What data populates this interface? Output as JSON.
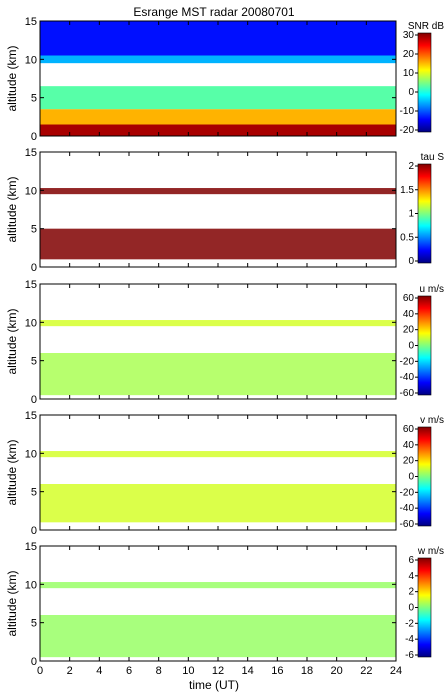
{
  "figure": {
    "title": "Esrange MST radar 20080701",
    "xlabel": "time (UT)",
    "x_ticks": [
      "0",
      "2",
      "4",
      "6",
      "8",
      "10",
      "12",
      "14",
      "16",
      "18",
      "20",
      "22",
      "24"
    ],
    "y_ticks": [
      "0",
      "5",
      "10",
      "15"
    ]
  },
  "chart_data": [
    {
      "type": "heatmap",
      "ylabel": "altitude (km)",
      "xlim": [
        0,
        24
      ],
      "ylim": [
        0,
        15
      ],
      "colorbar_label": "SNR dB",
      "colorbar_ticks": [
        "30",
        "20",
        "10",
        "0",
        "-10",
        "-20"
      ],
      "vlim": [
        -20,
        30
      ],
      "description_layers": [
        {
          "alt": [
            0,
            1.5
          ],
          "value": 28
        },
        {
          "alt": [
            1.5,
            3.5
          ],
          "value": 15
        },
        {
          "alt": [
            3.5,
            6.5
          ],
          "value": 3
        },
        {
          "alt": [
            9.5,
            10.5
          ],
          "value": -5
        },
        {
          "alt": [
            10.5,
            15
          ],
          "value": -13
        }
      ]
    },
    {
      "type": "heatmap",
      "ylabel": "altitude (km)",
      "xlim": [
        0,
        24
      ],
      "ylim": [
        0,
        15
      ],
      "colorbar_label": "tau S",
      "colorbar_ticks": [
        "2",
        "1.5",
        "1",
        "0.5",
        "0"
      ],
      "vlim": [
        0,
        2
      ],
      "description_layers": [
        {
          "alt": [
            1,
            5
          ],
          "value": 2.0
        },
        {
          "alt": [
            9.5,
            10.3
          ],
          "value": 2.0
        }
      ]
    },
    {
      "type": "heatmap",
      "ylabel": "altitude (km)",
      "xlim": [
        0,
        24
      ],
      "ylim": [
        0,
        15
      ],
      "colorbar_label": "u m/s",
      "colorbar_ticks": [
        "60",
        "40",
        "20",
        "0",
        "-20",
        "-40",
        "-60"
      ],
      "vlim": [
        -60,
        60
      ],
      "description_layers": [
        {
          "alt": [
            0.5,
            6
          ],
          "value": 5
        },
        {
          "alt": [
            9.5,
            10.3
          ],
          "value": 10
        }
      ]
    },
    {
      "type": "heatmap",
      "ylabel": "altitude (km)",
      "xlim": [
        0,
        24
      ],
      "ylim": [
        0,
        15
      ],
      "colorbar_label": "v m/s",
      "colorbar_ticks": [
        "60",
        "40",
        "20",
        "0",
        "-20",
        "-40",
        "-60"
      ],
      "vlim": [
        -60,
        60
      ],
      "description_layers": [
        {
          "alt": [
            1,
            6
          ],
          "value": 10
        },
        {
          "alt": [
            9.5,
            10.3
          ],
          "value": 10
        }
      ]
    },
    {
      "type": "heatmap",
      "ylabel": "altitude (km)",
      "xlim": [
        0,
        24
      ],
      "ylim": [
        0,
        15
      ],
      "colorbar_label": "w m/s",
      "colorbar_ticks": [
        "6",
        "4",
        "2",
        "0",
        "-2",
        "-4",
        "-6"
      ],
      "vlim": [
        -6,
        6
      ],
      "description_layers": [
        {
          "alt": [
            0.5,
            6
          ],
          "value": 0.3
        },
        {
          "alt": [
            9.5,
            10.3
          ],
          "value": 0.3
        }
      ]
    }
  ]
}
